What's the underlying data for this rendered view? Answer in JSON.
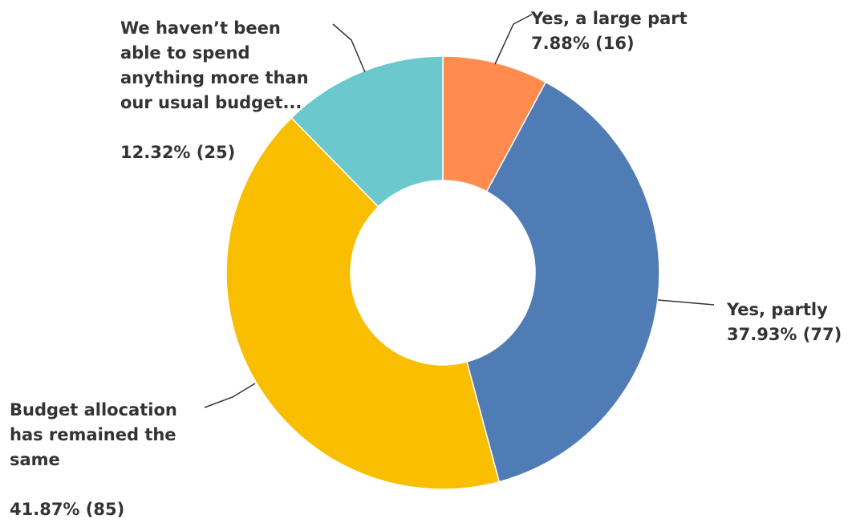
{
  "chart_data": {
    "type": "pie",
    "donut": true,
    "slices": [
      {
        "label_lines": [
          "Yes, a large part"
        ],
        "value_text": "7.88% (16)",
        "percent": 7.88,
        "count": 16,
        "color": "#ff8b4f"
      },
      {
        "label_lines": [
          "Yes, partly"
        ],
        "value_text": "37.93% (77)",
        "percent": 37.93,
        "count": 77,
        "color": "#507cb6"
      },
      {
        "label_lines": [
          "Budget allocation",
          "has remained the",
          "same"
        ],
        "value_text": "41.87% (85)",
        "percent": 41.87,
        "count": 85,
        "color": "#f9be00"
      },
      {
        "label_lines": [
          "We haven’t been",
          "able to spend",
          "anything more than",
          "our usual budget..."
        ],
        "value_text": "12.32% (25)",
        "percent": 12.32,
        "count": 25,
        "color": "#6bc8cd"
      }
    ]
  }
}
